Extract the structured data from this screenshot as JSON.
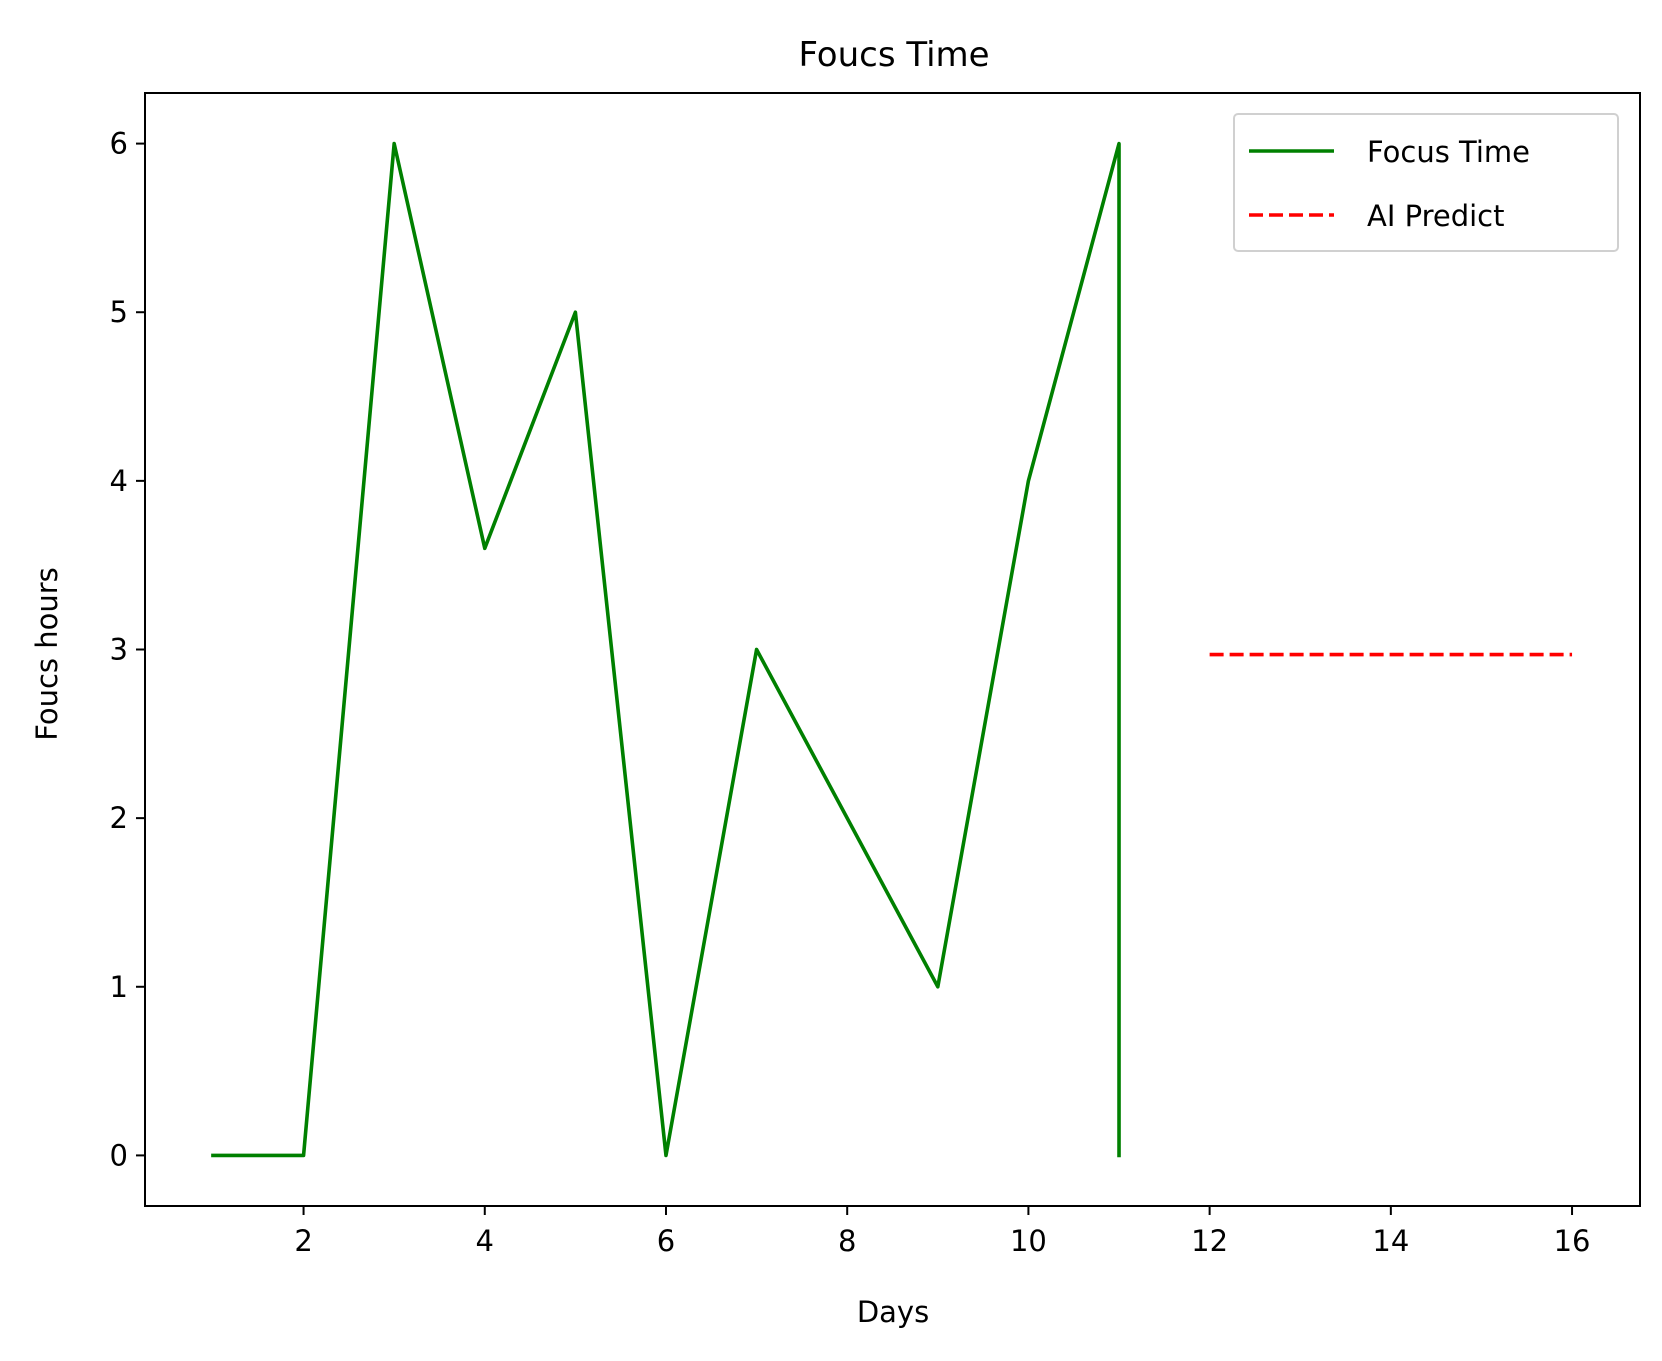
{
  "chart_data": {
    "type": "line",
    "title": "Foucs Time",
    "xlabel": "Days",
    "ylabel": "Foucs hours",
    "xlim": [
      0.25,
      16.75
    ],
    "ylim": [
      -0.3,
      6.3
    ],
    "xticks": [
      2,
      4,
      6,
      8,
      10,
      12,
      14,
      16
    ],
    "yticks": [
      0,
      1,
      2,
      3,
      4,
      5,
      6
    ],
    "grid": false,
    "legend_position": "top-right",
    "series": [
      {
        "name": "Focus Time",
        "color": "#008000",
        "style": "solid",
        "points": [
          [
            1,
            0
          ],
          [
            2,
            0
          ],
          [
            3,
            6
          ],
          [
            4,
            3.6
          ],
          [
            5,
            5
          ],
          [
            6,
            0
          ],
          [
            7,
            3
          ],
          [
            8,
            2
          ],
          [
            9,
            1
          ],
          [
            10,
            4
          ],
          [
            11,
            6
          ],
          [
            11,
            0
          ]
        ]
      },
      {
        "name": "AI Predict",
        "color": "#ff0000",
        "style": "dashed",
        "points": [
          [
            12,
            2.97
          ],
          [
            13,
            2.97
          ],
          [
            14,
            2.97
          ],
          [
            15,
            2.97
          ],
          [
            16,
            2.97
          ]
        ]
      }
    ]
  }
}
